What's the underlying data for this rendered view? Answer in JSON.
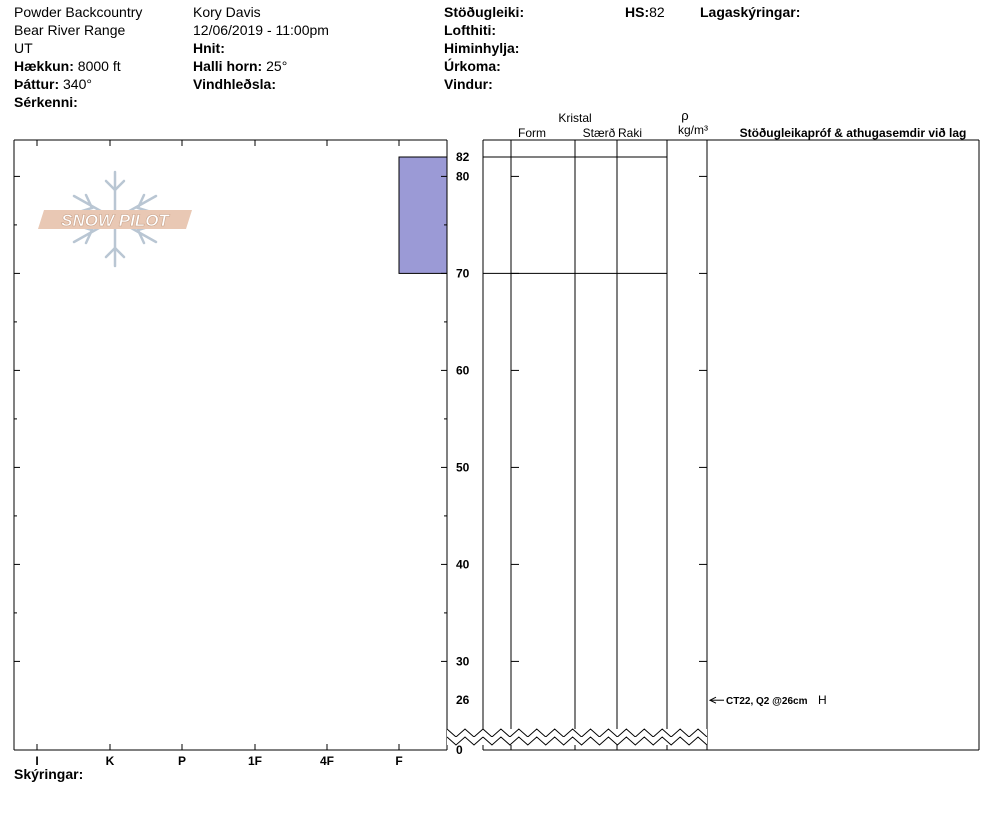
{
  "header": {
    "col1": {
      "line1": "Powder Backcountry",
      "line2": "Bear River Range",
      "line3": "UT",
      "elevation_label": "Hækkun:",
      "elevation_value": "8000 ft",
      "aspect_label": "Þáttur:",
      "aspect_value": "340°",
      "features_label": "Sérkenni:"
    },
    "col2": {
      "observer": "Kory Davis",
      "datetime": "12/06/2019 - 11:00pm",
      "coords_label": "Hnit:",
      "slope_label": "Halli horn:",
      "slope_value": "25°",
      "wind_loading_label": "Vindhleðsla:"
    },
    "col3": {
      "stability_label": "Stöðugleiki:",
      "air_temp_label": "Lofthiti:",
      "sky_label": "Himinhylja:",
      "precip_label": "Úrkoma:",
      "wind_label": "Vindur:"
    },
    "hs_label": "HS:",
    "hs_value": "82",
    "layer_notes_label": "Lagaskýringar:"
  },
  "footer": {
    "notes_label": "Skýringar:"
  },
  "logo": {
    "text": "SNOW PILOT"
  },
  "chart_data": {
    "type": "snow-profile",
    "hs_cm": 82,
    "ylim": [
      0,
      82
    ],
    "y_break": true,
    "y_ticks": [
      0,
      26,
      30,
      40,
      50,
      60,
      70,
      80,
      82
    ],
    "hardness_scale": [
      "I",
      "K",
      "P",
      "1F",
      "4F",
      "F"
    ],
    "layers": [
      {
        "top_cm": 82,
        "bottom_cm": 70,
        "hardness": "F",
        "color": "#9b9ad6"
      }
    ],
    "grid_headers": {
      "crystal": "Kristal",
      "form": "Form",
      "size": "Stærð",
      "wetness": "Raki",
      "density_symbol": "ρ",
      "density_unit": "kg/m³",
      "tests": "Stöðugleikapróf & athugasemdir við lag"
    },
    "tests": [
      {
        "depth_cm": 26,
        "text": "CT22, Q2 @26cm",
        "code": "H"
      }
    ]
  }
}
